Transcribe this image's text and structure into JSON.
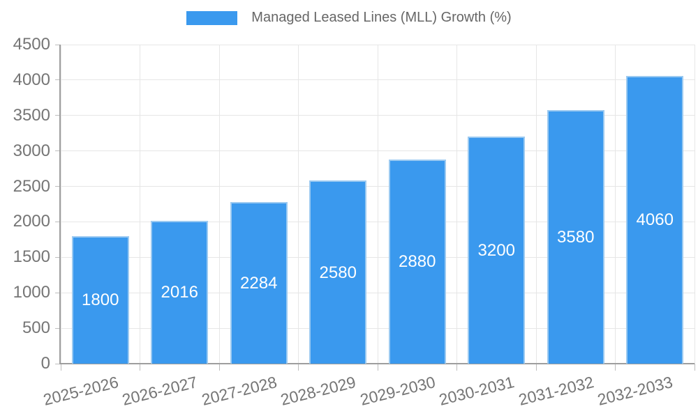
{
  "chart_data": {
    "type": "bar",
    "title": "Managed Leased Lines (MLL) Growth (%)",
    "categories": [
      "2025-2026",
      "2026-2027",
      "2027-2028",
      "2028-2029",
      "2029-2030",
      "2030-2031",
      "2031-2032",
      "2032-2033"
    ],
    "values": [
      1800,
      2016,
      2284,
      2580,
      2880,
      3200,
      3580,
      4060
    ],
    "xlabel": "",
    "ylabel": "",
    "ylim": [
      0,
      4500
    ],
    "yticks": [
      0,
      500,
      1000,
      1500,
      2000,
      2500,
      3000,
      3500,
      4000,
      4500
    ],
    "grid": true,
    "legend_position": "top",
    "colors": {
      "bar": "#3A99EE",
      "bar_border": "#9CCAF1",
      "value_label": "#FFFFFF",
      "grid": "#E6E6E6",
      "axis": "#9E9E9E",
      "tickmark": "#BDBDBD",
      "tick_text": "#757575",
      "legend_text": "#666666"
    }
  }
}
